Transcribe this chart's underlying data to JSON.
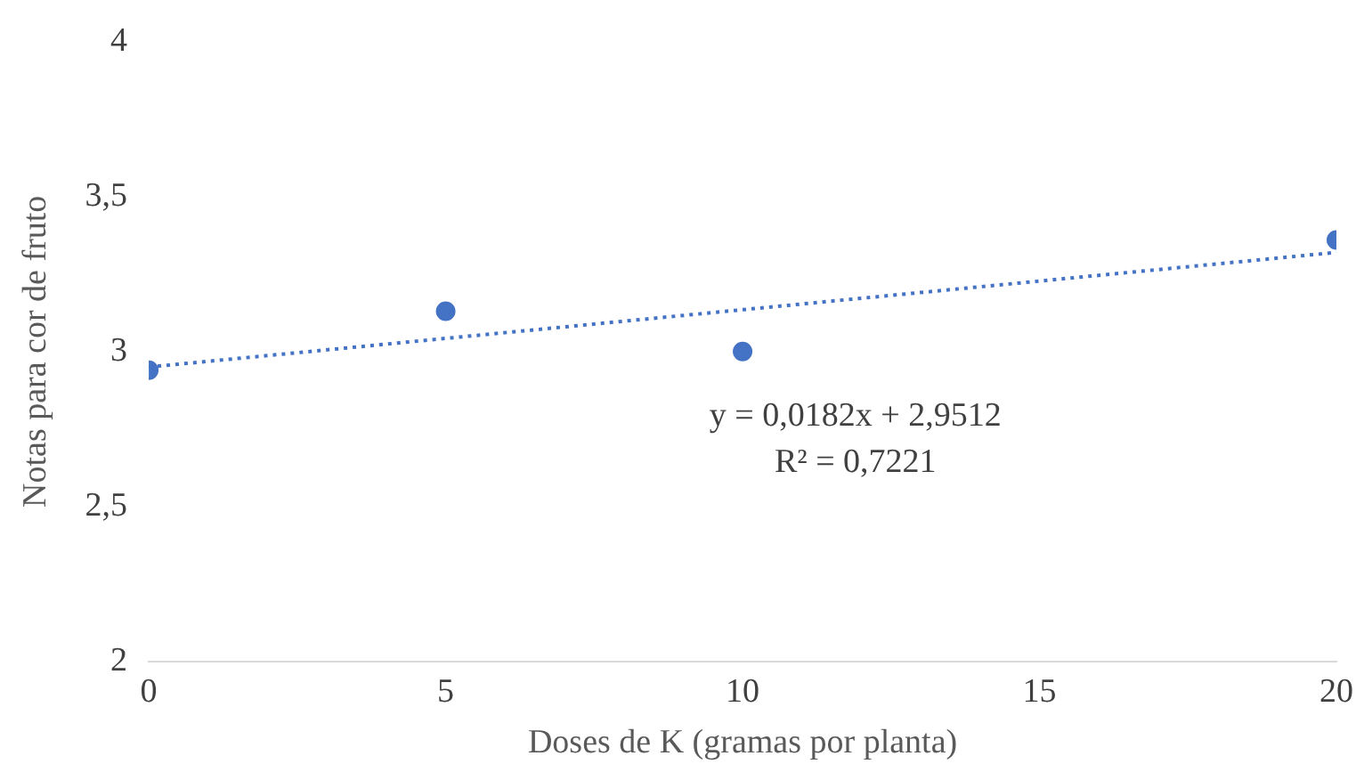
{
  "chart_data": {
    "type": "scatter",
    "xlabel": "Doses de K (gramas por planta)",
    "ylabel": "Notas para cor de fruto",
    "xlim": [
      0,
      20
    ],
    "xticks": [
      0,
      5,
      10,
      15,
      20
    ],
    "ylim": [
      2,
      4
    ],
    "yticks": [
      2,
      {
        "value": 2.5,
        "label": "2,5"
      },
      3,
      {
        "value": 3.5,
        "label": "3,5"
      },
      4
    ],
    "grid": false,
    "legend": false,
    "series": [
      {
        "color": "#4472c4",
        "x": [
          0,
          5,
          10,
          20
        ],
        "values": [
          2.94,
          3.13,
          3.0,
          3.36
        ],
        "marker": "circle"
      },
      {
        "type": "line",
        "color": "#4472c4",
        "x": [
          0,
          20
        ],
        "values": [
          2.95,
          3.32
        ],
        "line_style": "dotted",
        "marker": "none"
      }
    ],
    "annotations": [
      "y = 0,0182x + 2,9512",
      "R² = 0,7221"
    ]
  }
}
